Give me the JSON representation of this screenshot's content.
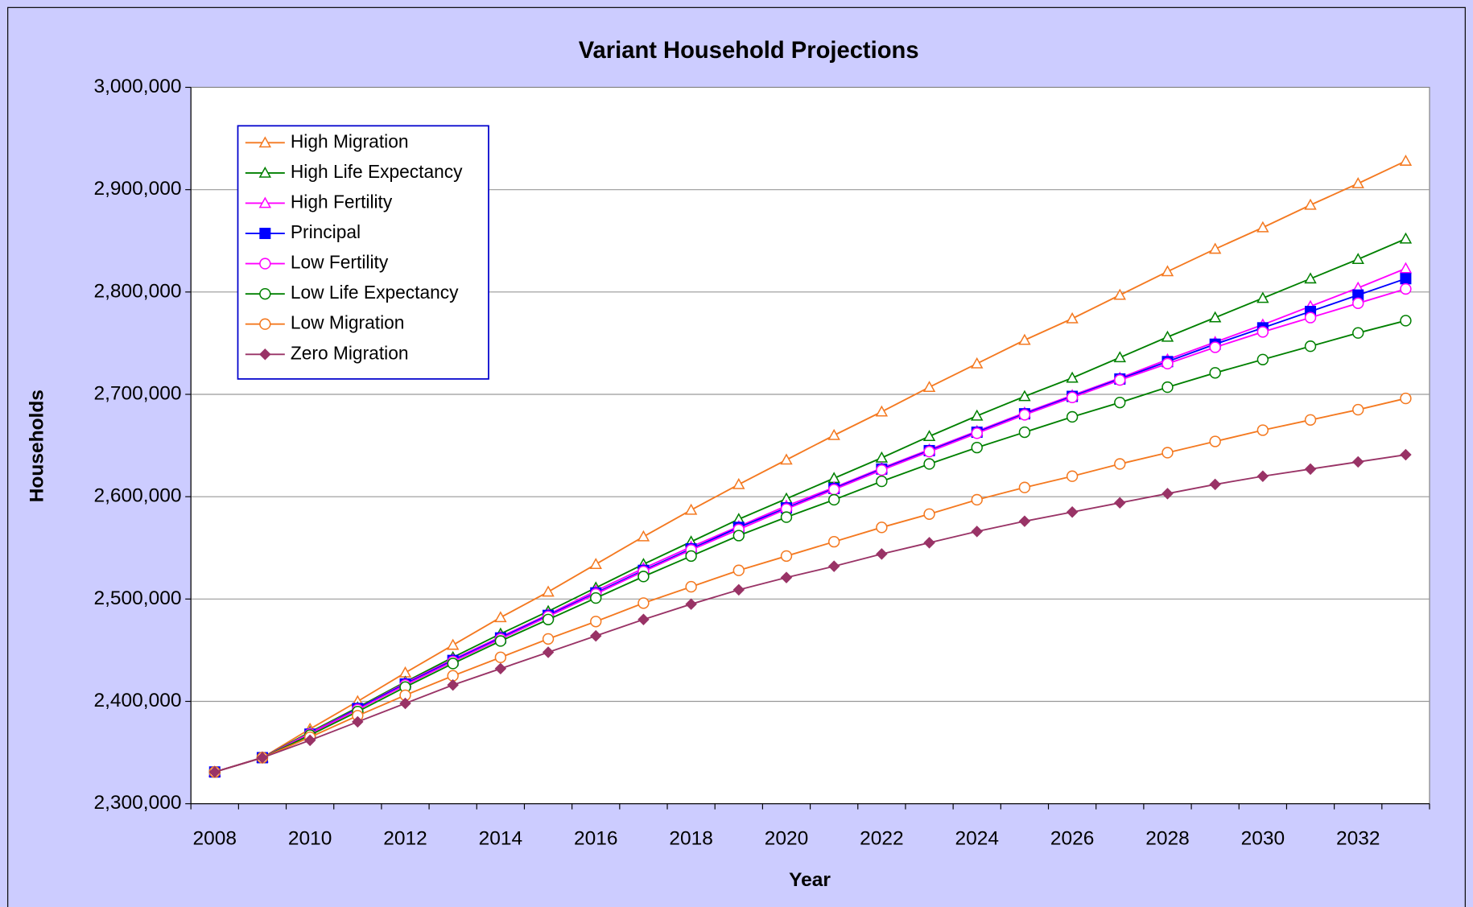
{
  "chart_data": {
    "type": "line",
    "title": "Variant Household Projections",
    "x_label": "Year",
    "y_label": "Households",
    "categories": [
      2008,
      null,
      2010,
      null,
      2012,
      null,
      2014,
      null,
      2016,
      null,
      2018,
      null,
      2020,
      null,
      2022,
      null,
      2024,
      null,
      2026,
      null,
      2028,
      null,
      2030,
      null,
      2032,
      null
    ],
    "ylim": [
      2300000,
      3000000
    ],
    "yticks": [
      {
        "value": 2300000,
        "label": "2,300,000"
      },
      {
        "value": 2400000,
        "label": "2,400,000"
      },
      {
        "value": 2500000,
        "label": "2,500,000"
      },
      {
        "value": 2600000,
        "label": "2,600,000"
      },
      {
        "value": 2700000,
        "label": "2,700,000"
      },
      {
        "value": 2800000,
        "label": "2,800,000"
      },
      {
        "value": 2900000,
        "label": "2,900,000"
      },
      {
        "value": 3000000,
        "label": "3,000,000"
      }
    ],
    "grid": true,
    "legend": "top-left",
    "series": [
      {
        "name": "High Migration",
        "color": "#f47920",
        "marker": "triangle-open",
        "values": [
          2331000,
          2345000,
          2373000,
          2400000,
          2428000,
          2455000,
          2482000,
          2507000,
          2534000,
          2561000,
          2587000,
          2612000,
          2636000,
          2660000,
          2683000,
          2707000,
          2730000,
          2753000,
          2774000,
          2797000,
          2820000,
          2842000,
          2863000,
          2885000,
          2906000,
          2928000
        ]
      },
      {
        "name": "High Life Expectancy",
        "color": "#008000",
        "marker": "triangle-open",
        "values": [
          2331000,
          2345000,
          2370000,
          2394000,
          2419000,
          2443000,
          2466000,
          2488000,
          2511000,
          2534000,
          2556000,
          2578000,
          2598000,
          2618000,
          2638000,
          2659000,
          2679000,
          2698000,
          2716000,
          2736000,
          2756000,
          2775000,
          2794000,
          2813000,
          2832000,
          2852000
        ]
      },
      {
        "name": "High Fertility",
        "color": "#ff00ff",
        "marker": "triangle-open",
        "values": [
          2331000,
          2345000,
          2369000,
          2393000,
          2418000,
          2441000,
          2463000,
          2485000,
          2508000,
          2530000,
          2551000,
          2571000,
          2591000,
          2609000,
          2628000,
          2646000,
          2664000,
          2682000,
          2699000,
          2716000,
          2734000,
          2751000,
          2768000,
          2786000,
          2804000,
          2823000
        ]
      },
      {
        "name": "Principal",
        "color": "#0000ff",
        "marker": "square",
        "values": [
          2331000,
          2345000,
          2368000,
          2393000,
          2417000,
          2440000,
          2462000,
          2484000,
          2506000,
          2528000,
          2549000,
          2570000,
          2589000,
          2608000,
          2627000,
          2645000,
          2663000,
          2681000,
          2698000,
          2715000,
          2732000,
          2749000,
          2765000,
          2781000,
          2797000,
          2813000
        ]
      },
      {
        "name": "Low Fertility",
        "color": "#ff00ff",
        "marker": "circle-open",
        "values": [
          2331000,
          2345000,
          2368000,
          2392000,
          2416000,
          2439000,
          2461000,
          2483000,
          2505000,
          2527000,
          2548000,
          2568000,
          2588000,
          2607000,
          2626000,
          2644000,
          2662000,
          2680000,
          2697000,
          2714000,
          2730000,
          2746000,
          2761000,
          2775000,
          2789000,
          2803000
        ]
      },
      {
        "name": "Low Life Expectancy",
        "color": "#008000",
        "marker": "circle-open",
        "values": [
          2331000,
          2345000,
          2367000,
          2390000,
          2414000,
          2437000,
          2459000,
          2480000,
          2501000,
          2522000,
          2542000,
          2562000,
          2580000,
          2597000,
          2615000,
          2632000,
          2648000,
          2663000,
          2678000,
          2692000,
          2707000,
          2721000,
          2734000,
          2747000,
          2760000,
          2772000
        ]
      },
      {
        "name": "Low Migration",
        "color": "#f47920",
        "marker": "circle-open",
        "values": [
          2331000,
          2345000,
          2365000,
          2386000,
          2406000,
          2425000,
          2443000,
          2461000,
          2478000,
          2496000,
          2512000,
          2528000,
          2542000,
          2556000,
          2570000,
          2583000,
          2597000,
          2609000,
          2620000,
          2632000,
          2643000,
          2654000,
          2665000,
          2675000,
          2685000,
          2696000
        ]
      },
      {
        "name": "Zero Migration",
        "color": "#993366",
        "marker": "diamond",
        "values": [
          2331000,
          2345000,
          2362000,
          2380000,
          2398000,
          2416000,
          2432000,
          2448000,
          2464000,
          2480000,
          2495000,
          2509000,
          2521000,
          2532000,
          2544000,
          2555000,
          2566000,
          2576000,
          2585000,
          2594000,
          2603000,
          2612000,
          2620000,
          2627000,
          2634000,
          2641000
        ]
      }
    ]
  }
}
